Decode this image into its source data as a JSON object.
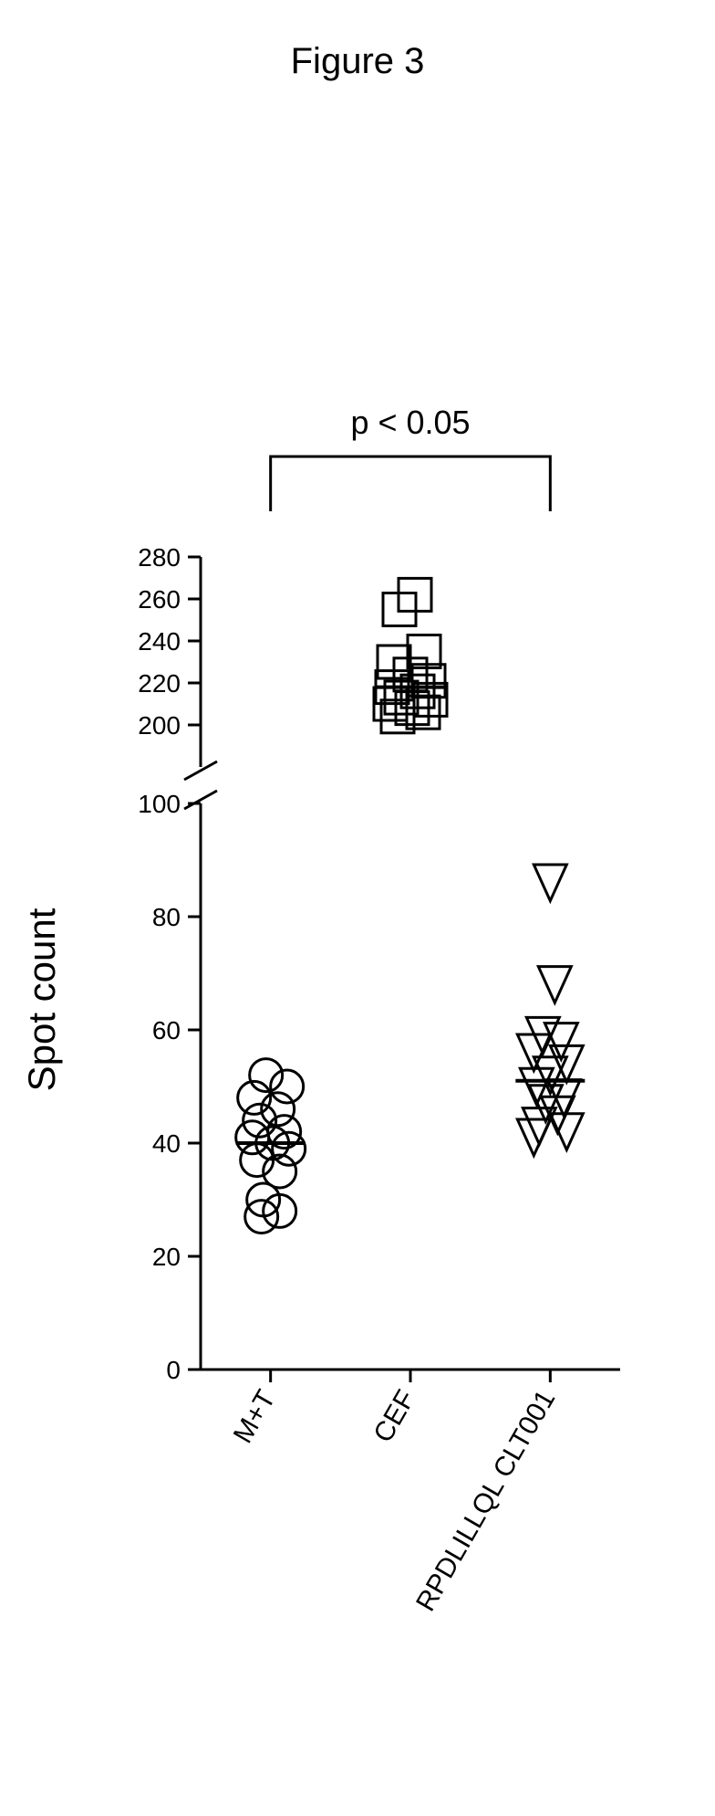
{
  "figure_title": "Figure 3",
  "chart": {
    "type": "scatter-with-broken-axis",
    "ylabel": "Spot count",
    "ylabel_fontsize": 42,
    "pval_text": "p < 0.05",
    "pval_fontsize": 36,
    "categories": [
      "M+T",
      "CEF",
      "RPDLILLQL CLT001"
    ],
    "xlabel_fontsize": 30,
    "xlabel_rotation_deg": 60,
    "y_lower": {
      "min": 0,
      "max": 100,
      "ticks": [
        0,
        20,
        40,
        60,
        80,
        100
      ]
    },
    "y_upper": {
      "min": 180,
      "max": 280,
      "ticks": [
        200,
        220,
        240,
        260,
        280
      ]
    },
    "stroke_color": "#000000",
    "axis_stroke_width": 3,
    "marker_stroke_width": 3,
    "marker_radius": 18,
    "median_line_stroke_width": 4,
    "background_color": "#ffffff",
    "tick_fontsize": 28,
    "series": [
      {
        "name": "M+T",
        "marker": "circle",
        "median": 40,
        "points": [
          {
            "v": 52,
            "dx": -5
          },
          {
            "v": 50,
            "dx": 18
          },
          {
            "v": 48,
            "dx": -18
          },
          {
            "v": 46,
            "dx": 8
          },
          {
            "v": 44,
            "dx": -12
          },
          {
            "v": 42,
            "dx": 15
          },
          {
            "v": 41,
            "dx": -20
          },
          {
            "v": 40,
            "dx": 2
          },
          {
            "v": 39,
            "dx": 20
          },
          {
            "v": 37,
            "dx": -15
          },
          {
            "v": 35,
            "dx": 10
          },
          {
            "v": 30,
            "dx": -8
          },
          {
            "v": 28,
            "dx": 10
          },
          {
            "v": 27,
            "dx": -10
          }
        ]
      },
      {
        "name": "CEF",
        "marker": "square",
        "median": 218,
        "points": [
          {
            "v": 262,
            "dx": 5
          },
          {
            "v": 255,
            "dx": -12
          },
          {
            "v": 235,
            "dx": 15
          },
          {
            "v": 230,
            "dx": -18
          },
          {
            "v": 224,
            "dx": 0
          },
          {
            "v": 221,
            "dx": 20
          },
          {
            "v": 218,
            "dx": -20
          },
          {
            "v": 216,
            "dx": 8
          },
          {
            "v": 213,
            "dx": -10
          },
          {
            "v": 212,
            "dx": 22
          },
          {
            "v": 210,
            "dx": -22
          },
          {
            "v": 208,
            "dx": 2
          },
          {
            "v": 206,
            "dx": 14
          },
          {
            "v": 204,
            "dx": -14
          }
        ]
      },
      {
        "name": "RPDLILLQL CLT001",
        "marker": "triangle-down",
        "median": 51,
        "points": [
          {
            "v": 86,
            "dx": 0
          },
          {
            "v": 68,
            "dx": 5
          },
          {
            "v": 59,
            "dx": -8
          },
          {
            "v": 58,
            "dx": 12
          },
          {
            "v": 56,
            "dx": -18
          },
          {
            "v": 54,
            "dx": 18
          },
          {
            "v": 52,
            "dx": 0
          },
          {
            "v": 50,
            "dx": -15
          },
          {
            "v": 48,
            "dx": 15
          },
          {
            "v": 47,
            "dx": -5
          },
          {
            "v": 45,
            "dx": 8
          },
          {
            "v": 43,
            "dx": -12
          },
          {
            "v": 42,
            "dx": 18
          },
          {
            "v": 41,
            "dx": -18
          }
        ]
      }
    ]
  }
}
